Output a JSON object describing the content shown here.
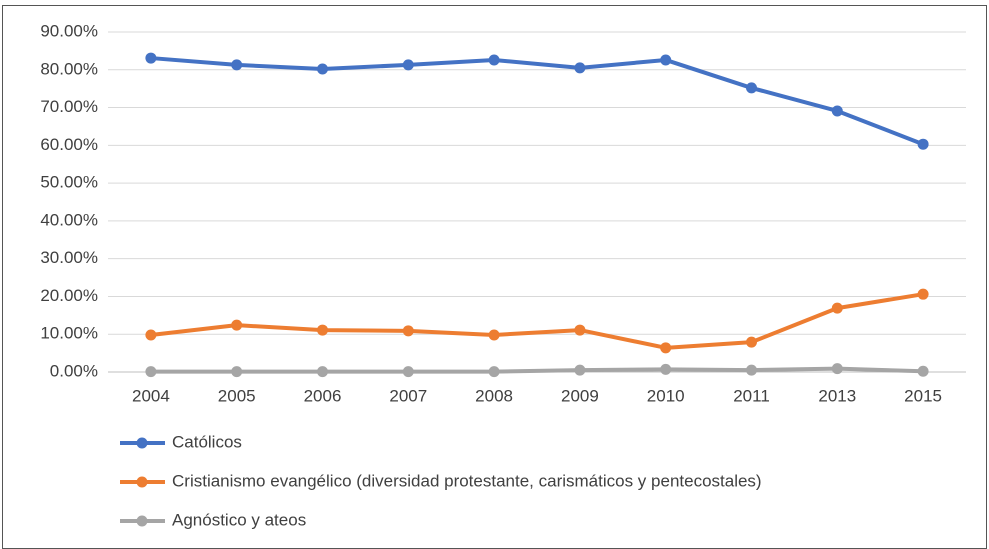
{
  "chart_data": {
    "type": "line",
    "categories": [
      "2004",
      "2005",
      "2006",
      "2007",
      "2008",
      "2009",
      "2010",
      "2011",
      "2013",
      "2015"
    ],
    "series": [
      {
        "name": "Católicos",
        "color": "#4472c4",
        "values": [
          83.1,
          81.3,
          80.2,
          81.3,
          82.6,
          80.5,
          82.6,
          75.2,
          69.1,
          60.3
        ]
      },
      {
        "name": "Cristianismo evangélico (diversidad protestante, carismáticos y pentecostales)",
        "color": "#ed7d31",
        "values": [
          9.8,
          12.4,
          11.1,
          10.9,
          9.8,
          11.1,
          6.4,
          7.9,
          16.9,
          20.6
        ]
      },
      {
        "name": "Agnóstico y ateos",
        "color": "#a5a5a5",
        "values": [
          0.1,
          0.1,
          0.1,
          0.1,
          0.1,
          0.5,
          0.7,
          0.5,
          0.9,
          0.2
        ]
      }
    ],
    "ylim": [
      0,
      90
    ],
    "yticks": [
      {
        "value": 0,
        "label": "0.00%"
      },
      {
        "value": 10,
        "label": "10.00%"
      },
      {
        "value": 20,
        "label": "20.00%"
      },
      {
        "value": 30,
        "label": "30.00%"
      },
      {
        "value": 40,
        "label": "40.00%"
      },
      {
        "value": 50,
        "label": "50.00%"
      },
      {
        "value": 60,
        "label": "60.00%"
      },
      {
        "value": 70,
        "label": "70.00%"
      },
      {
        "value": 80,
        "label": "80.00%"
      },
      {
        "value": 90,
        "label": "90.00%"
      }
    ],
    "grid": true,
    "legend": "bottom"
  }
}
